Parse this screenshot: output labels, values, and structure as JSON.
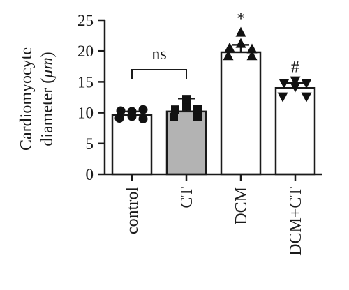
{
  "chart_data": {
    "type": "bar",
    "ylabel_line1": "Cardiomyocyte",
    "ylabel_line2_prefix": "diameter (",
    "ylabel_line2_unit": "μm",
    "ylabel_line2_suffix": ")",
    "ylim": [
      0,
      25
    ],
    "yticks": [
      "0",
      "5",
      "10",
      "15",
      "20",
      "25"
    ],
    "categories": [
      "control",
      "CT",
      "DCM",
      "DCM+CT"
    ],
    "values": [
      9.6,
      10.2,
      19.8,
      14.0
    ],
    "errors": [
      0.6,
      2.1,
      1.2,
      0.8
    ],
    "bar_colors": [
      "#ffffff",
      "#b3b3b3",
      "#ffffff",
      "#ffffff"
    ],
    "markers": [
      "circle",
      "square",
      "triangle-up",
      "triangle-down"
    ],
    "points": [
      [
        9.1,
        9.0,
        10.3,
        10.5,
        10.2,
        9.4
      ],
      [
        9.3,
        9.3,
        10.5,
        10.6,
        11.0,
        12.2
      ],
      [
        19.2,
        19.2,
        20.5,
        20.3,
        21.2,
        23.0
      ],
      [
        12.6,
        12.6,
        14.8,
        14.8,
        14.2,
        15.2
      ]
    ],
    "bracket": {
      "from": "control",
      "to": "CT",
      "label": "ns"
    },
    "annotations": [
      {
        "category": "DCM",
        "label": "*"
      },
      {
        "category": "DCM+CT",
        "label": "#"
      }
    ]
  }
}
